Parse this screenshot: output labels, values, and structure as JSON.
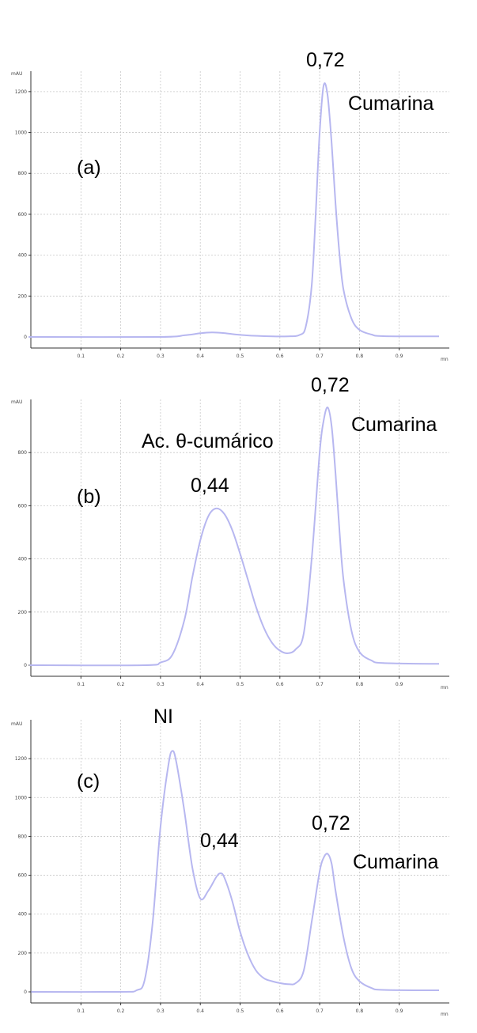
{
  "chart_data": [
    {
      "type": "line",
      "panel_label": "(a)",
      "ylabel": "mAU",
      "xlabel": "mn",
      "xlim": [
        0,
        1.0
      ],
      "ylim": [
        0,
        1300
      ],
      "xticks": [
        "0.1",
        "0.2",
        "0.3",
        "0.4",
        "0.5",
        "0.6",
        "0.7",
        "0.8",
        "0.9"
      ],
      "yticks": [
        "0",
        "200",
        "400",
        "600",
        "800",
        "1000",
        "1200"
      ],
      "grid": true,
      "line_color": "#b7b7f0",
      "series": [
        {
          "x": [
            0.0,
            0.3,
            0.36,
            0.4,
            0.43,
            0.46,
            0.5,
            0.56,
            0.62,
            0.65,
            0.665,
            0.68,
            0.69,
            0.7,
            0.71,
            0.72,
            0.73,
            0.74,
            0.75,
            0.76,
            0.78,
            0.8,
            0.83,
            0.86,
            1.0
          ],
          "y": [
            0,
            0,
            8,
            18,
            22,
            19,
            10,
            4,
            3,
            10,
            50,
            250,
            600,
            1000,
            1230,
            1180,
            950,
            650,
            400,
            230,
            90,
            35,
            12,
            4,
            3
          ]
        }
      ],
      "annotations": [
        {
          "text": "0,72"
        },
        {
          "text": "Cumarina"
        }
      ]
    },
    {
      "type": "line",
      "panel_label": "(b)",
      "ylabel": "mAU",
      "xlabel": "mn",
      "xlim": [
        0,
        1.0
      ],
      "ylim": [
        0,
        1000
      ],
      "xticks": [
        "0.1",
        "0.2",
        "0.3",
        "0.4",
        "0.5",
        "0.6",
        "0.7",
        "0.8",
        "0.9"
      ],
      "yticks": [
        "0",
        "200",
        "400",
        "600",
        "800"
      ],
      "grid": true,
      "line_color": "#b7b7f0",
      "series": [
        {
          "x": [
            0.0,
            0.26,
            0.3,
            0.33,
            0.36,
            0.38,
            0.4,
            0.42,
            0.44,
            0.46,
            0.48,
            0.5,
            0.52,
            0.54,
            0.56,
            0.58,
            0.6,
            0.62,
            0.64,
            0.66,
            0.68,
            0.7,
            0.71,
            0.72,
            0.73,
            0.74,
            0.75,
            0.76,
            0.78,
            0.8,
            0.83,
            0.86,
            1.0
          ],
          "y": [
            0,
            0,
            10,
            40,
            170,
            330,
            470,
            560,
            590,
            570,
            510,
            420,
            320,
            220,
            140,
            85,
            55,
            45,
            60,
            120,
            400,
            800,
            920,
            970,
            900,
            720,
            500,
            320,
            130,
            50,
            18,
            8,
            5
          ]
        }
      ],
      "annotations": [
        {
          "text": "0,72"
        },
        {
          "text": "Cumarina"
        },
        {
          "text": "Ac. θ-cumárico"
        },
        {
          "text": "0,44"
        }
      ]
    },
    {
      "type": "line",
      "panel_label": "(c)",
      "ylabel": "mAU",
      "xlabel": "mn",
      "xlim": [
        0,
        1.0
      ],
      "ylim": [
        0,
        1400
      ],
      "xticks": [
        "0.1",
        "0.2",
        "0.3",
        "0.4",
        "0.5",
        "0.6",
        "0.7",
        "0.8",
        "0.9"
      ],
      "yticks": [
        "0",
        "200",
        "400",
        "600",
        "800",
        "1000",
        "1200"
      ],
      "grid": true,
      "line_color": "#b7b7f0",
      "series": [
        {
          "x": [
            0.0,
            0.2,
            0.24,
            0.26,
            0.28,
            0.3,
            0.32,
            0.33,
            0.34,
            0.36,
            0.38,
            0.4,
            0.42,
            0.44,
            0.45,
            0.46,
            0.48,
            0.5,
            0.52,
            0.54,
            0.56,
            0.58,
            0.6,
            0.62,
            0.64,
            0.66,
            0.68,
            0.7,
            0.71,
            0.72,
            0.73,
            0.74,
            0.76,
            0.78,
            0.8,
            0.83,
            0.86,
            1.0
          ],
          "y": [
            0,
            0,
            8,
            60,
            350,
            850,
            1170,
            1240,
            1180,
            930,
            640,
            480,
            520,
            590,
            610,
            590,
            470,
            310,
            190,
            110,
            70,
            55,
            45,
            40,
            45,
            110,
            360,
            620,
            690,
            710,
            660,
            520,
            280,
            120,
            55,
            20,
            10,
            8
          ]
        }
      ],
      "annotations": [
        {
          "text": "NI"
        },
        {
          "text": "0,44"
        },
        {
          "text": "0,72"
        },
        {
          "text": "Cumarina"
        }
      ]
    }
  ]
}
